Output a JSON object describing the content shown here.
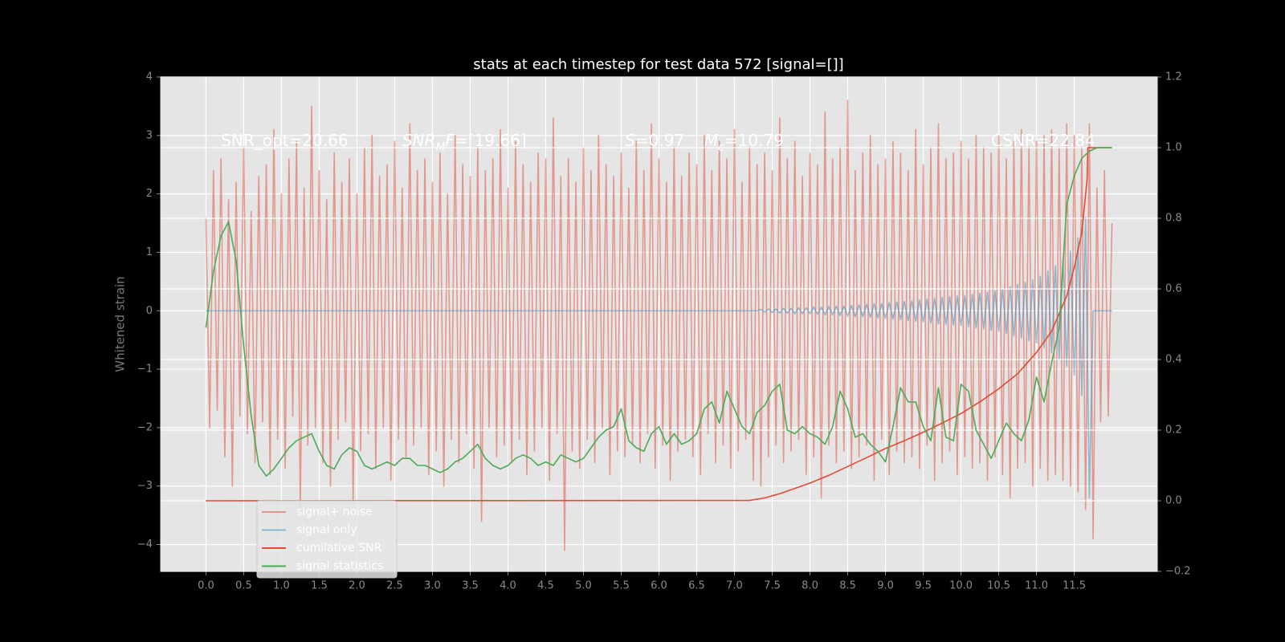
{
  "chart_data": {
    "type": "line",
    "title": "stats at each timestep for test data 572 [signal=[]]",
    "ylabel": "Whitened strain",
    "xlim": [
      -0.6,
      12.6
    ],
    "xticks": [
      {
        "value": 0,
        "label": "0.0"
      },
      0.5,
      {
        "value": 1,
        "label": "1.0"
      },
      1.5,
      {
        "value": 2,
        "label": "2.0"
      },
      2.5,
      {
        "value": 3,
        "label": "3.0"
      },
      3.5,
      {
        "value": 4,
        "label": "4.0"
      },
      4.5,
      {
        "value": 5,
        "label": "5.0"
      },
      5.5,
      {
        "value": 6,
        "label": "6.0"
      },
      6.5,
      {
        "value": 7,
        "label": "7.0"
      },
      7.5,
      {
        "value": 8,
        "label": "8.0"
      },
      8.5,
      {
        "value": 9,
        "label": "9.0"
      },
      9.5,
      {
        "value": 10,
        "label": "10.0"
      },
      10.5,
      {
        "value": 11,
        "label": "11.0"
      },
      11.5
    ],
    "ylim": [
      -4.46,
      4.0
    ],
    "yticks": [
      {
        "value": -4,
        "label": "−4"
      },
      {
        "value": -3,
        "label": "−3"
      },
      {
        "value": -2,
        "label": "−2"
      },
      {
        "value": -1,
        "label": "−1"
      },
      0,
      1,
      2,
      3,
      4
    ],
    "y2lim": [
      -0.2,
      1.2
    ],
    "y2ticks": [
      {
        "value": -0.2,
        "label": "−0.2"
      },
      {
        "value": 0,
        "label": "0.0"
      },
      0.2,
      0.4,
      0.6,
      0.8,
      {
        "value": 1,
        "label": "1.0"
      },
      1.2
    ],
    "grid": true,
    "legend": "lower left",
    "annotations": [
      {
        "parts": [
          {
            "text": "SNR_opt=20.66"
          }
        ]
      },
      {
        "parts": [
          {
            "text": "SNR",
            "style": "italic"
          },
          {
            "text": "M",
            "style": "sub"
          },
          {
            "text": "F",
            "style": "italic"
          },
          {
            "text": "=[19.66]"
          }
        ]
      },
      {
        "parts": [
          {
            "text": "S",
            "style": "italic"
          },
          {
            "text": "=0.97"
          }
        ]
      },
      {
        "parts": [
          {
            "text": "M",
            "style": "italic"
          },
          {
            "text": "c",
            "style": "sub"
          },
          {
            "text": "=10.79"
          }
        ]
      },
      {
        "parts": [
          {
            "text": "CSNR=22.84"
          }
        ]
      }
    ],
    "series": [
      {
        "name": "signal+ noise",
        "color": "#E24A33",
        "opacity": 0.5,
        "axis": "y",
        "x": [
          0,
          0.05,
          0.1,
          0.15,
          0.2,
          0.25,
          0.3,
          0.35,
          0.4,
          0.45,
          0.5,
          0.55,
          0.6,
          0.65,
          0.7,
          0.75,
          0.8,
          0.85,
          0.9,
          0.95,
          1,
          1.05,
          1.1,
          1.15,
          1.2,
          1.25,
          1.3,
          1.35,
          1.4,
          1.45,
          1.5,
          1.55,
          1.6,
          1.65,
          1.7,
          1.75,
          1.8,
          1.85,
          1.9,
          1.95,
          2,
          2.05,
          2.1,
          2.15,
          2.2,
          2.25,
          2.3,
          2.35,
          2.4,
          2.45,
          2.5,
          2.55,
          2.6,
          2.65,
          2.7,
          2.75,
          2.8,
          2.85,
          2.9,
          2.95,
          3,
          3.05,
          3.1,
          3.15,
          3.2,
          3.25,
          3.3,
          3.35,
          3.4,
          3.45,
          3.5,
          3.55,
          3.6,
          3.65,
          3.7,
          3.75,
          3.8,
          3.85,
          3.9,
          3.95,
          4,
          4.05,
          4.1,
          4.15,
          4.2,
          4.25,
          4.3,
          4.35,
          4.4,
          4.45,
          4.5,
          4.55,
          4.6,
          4.65,
          4.7,
          4.75,
          4.8,
          4.85,
          4.9,
          4.95,
          5,
          5.05,
          5.1,
          5.15,
          5.2,
          5.25,
          5.3,
          5.35,
          5.4,
          5.45,
          5.5,
          5.55,
          5.6,
          5.65,
          5.7,
          5.75,
          5.8,
          5.85,
          5.9,
          5.95,
          6,
          6.05,
          6.1,
          6.15,
          6.2,
          6.25,
          6.3,
          6.35,
          6.4,
          6.45,
          6.5,
          6.55,
          6.6,
          6.65,
          6.7,
          6.75,
          6.8,
          6.85,
          6.9,
          6.95,
          7,
          7.05,
          7.1,
          7.15,
          7.2,
          7.25,
          7.3,
          7.35,
          7.4,
          7.45,
          7.5,
          7.55,
          7.6,
          7.65,
          7.7,
          7.75,
          7.8,
          7.85,
          7.9,
          7.95,
          8,
          8.05,
          8.1,
          8.15,
          8.2,
          8.25,
          8.3,
          8.35,
          8.4,
          8.45,
          8.5,
          8.55,
          8.6,
          8.65,
          8.7,
          8.75,
          8.8,
          8.85,
          8.9,
          8.95,
          9,
          9.05,
          9.1,
          9.15,
          9.2,
          9.25,
          9.3,
          9.35,
          9.4,
          9.45,
          9.5,
          9.55,
          9.6,
          9.65,
          9.7,
          9.75,
          9.8,
          9.85,
          9.9,
          9.95,
          10,
          10.05,
          10.1,
          10.15,
          10.2,
          10.25,
          10.3,
          10.35,
          10.4,
          10.45,
          10.5,
          10.55,
          10.6,
          10.65,
          10.7,
          10.75,
          10.8,
          10.85,
          10.9,
          10.95,
          11,
          11.05,
          11.1,
          11.15,
          11.2,
          11.25,
          11.3,
          11.35,
          11.4,
          11.45,
          11.5,
          11.55,
          11.6,
          11.65,
          11.7,
          11.75,
          11.8,
          11.85,
          11.9,
          11.95,
          12
        ],
        "values": [
          1.6,
          -2.0,
          2.4,
          -1.7,
          2.6,
          -2.5,
          1.9,
          -3.0,
          2.2,
          -1.8,
          2.8,
          -2.1,
          1.7,
          -2.6,
          2.3,
          -1.9,
          2.5,
          -2.8,
          3.1,
          -2.2,
          2.0,
          -2.7,
          2.6,
          -1.8,
          2.9,
          -3.4,
          2.1,
          -2.3,
          3.5,
          -2.0,
          2.4,
          -2.6,
          1.9,
          -3.0,
          2.7,
          -2.2,
          2.2,
          -1.9,
          2.6,
          -3.3,
          2.0,
          -2.4,
          2.8,
          -2.1,
          3.0,
          -2.7,
          2.3,
          -2.0,
          2.5,
          -2.9,
          2.9,
          -2.2,
          2.1,
          -2.5,
          3.2,
          -2.3,
          2.4,
          -2.0,
          2.6,
          -2.8,
          2.2,
          -2.4,
          2.7,
          -3.0,
          2.0,
          -2.2,
          3.0,
          -2.6,
          2.5,
          -2.1,
          2.3,
          -2.7,
          2.8,
          -3.6,
          2.4,
          -2.0,
          2.6,
          -2.5,
          3.1,
          -2.3,
          2.1,
          -2.6,
          2.9,
          -2.2,
          2.5,
          -2.8,
          2.2,
          -2.4,
          2.7,
          -2.0,
          2.6,
          -2.9,
          3.3,
          -2.1,
          2.3,
          -4.1,
          2.6,
          -2.4,
          2.2,
          -2.7,
          2.8,
          -2.2,
          2.4,
          -2.6,
          3.0,
          -2.0,
          2.5,
          -2.8,
          2.3,
          -2.4,
          2.7,
          -2.5,
          2.1,
          -2.3,
          2.9,
          -2.6,
          2.4,
          -2.1,
          3.2,
          -2.7,
          2.6,
          -2.3,
          2.2,
          -2.9,
          2.8,
          -2.4,
          2.3,
          -2.2,
          2.7,
          -2.5,
          2.5,
          -2.8,
          3.0,
          -2.1,
          2.4,
          -2.6,
          2.9,
          -2.3,
          2.6,
          -2.7,
          3.1,
          -2.4,
          2.2,
          -2.2,
          2.8,
          -2.9,
          2.5,
          -3.0,
          2.7,
          -2.5,
          2.4,
          -2.3,
          3.3,
          -2.6,
          2.6,
          -2.4,
          2.9,
          -2.2,
          2.3,
          -2.8,
          2.7,
          -2.5,
          2.5,
          -3.2,
          3.4,
          -2.3,
          2.6,
          -2.6,
          2.8,
          -2.4,
          3.6,
          -2.7,
          2.4,
          -2.5,
          2.7,
          -2.3,
          3.0,
          -2.9,
          2.5,
          -2.2,
          2.6,
          -2.8,
          2.9,
          -2.4,
          2.7,
          -2.6,
          2.4,
          -2.5,
          3.1,
          -2.7,
          2.5,
          -2.3,
          2.8,
          -2.9,
          3.2,
          -2.6,
          2.6,
          -2.4,
          2.7,
          -2.8,
          2.9,
          -2.5,
          2.6,
          -2.7,
          3.0,
          -2.6,
          2.8,
          -2.9,
          2.7,
          -2.5,
          3.0,
          -2.8,
          2.6,
          -3.2,
          2.9,
          -2.7,
          3.1,
          -2.6,
          2.8,
          -3.0,
          2.9,
          -2.7,
          3.0,
          -2.9,
          3.1,
          -2.8,
          2.8,
          -2.9,
          3.2,
          -3.0,
          3.0,
          -3.1,
          2.8,
          -3.4,
          3.2,
          -3.9,
          2.1,
          -1.9,
          2.4,
          -1.8,
          1.5
        ]
      },
      {
        "name": "signal only",
        "color": "#348ABD",
        "opacity": 0.5,
        "axis": "y",
        "x": [
          0,
          7.3,
          7.35,
          7.4,
          7.45,
          7.5,
          7.55,
          7.6,
          7.65,
          7.7,
          7.75,
          7.8,
          7.85,
          7.9,
          7.95,
          8,
          8.05,
          8.1,
          8.15,
          8.2,
          8.25,
          8.3,
          8.35,
          8.4,
          8.45,
          8.5,
          8.55,
          8.6,
          8.65,
          8.7,
          8.75,
          8.8,
          8.85,
          8.9,
          8.95,
          9,
          9.05,
          9.1,
          9.15,
          9.2,
          9.25,
          9.3,
          9.35,
          9.4,
          9.45,
          9.5,
          9.55,
          9.6,
          9.65,
          9.7,
          9.75,
          9.8,
          9.85,
          9.9,
          9.95,
          10,
          10.05,
          10.1,
          10.15,
          10.2,
          10.25,
          10.3,
          10.35,
          10.4,
          10.45,
          10.5,
          10.55,
          10.6,
          10.65,
          10.7,
          10.75,
          10.8,
          10.85,
          10.9,
          10.95,
          11,
          11.05,
          11.1,
          11.15,
          11.2,
          11.25,
          11.3,
          11.35,
          11.4,
          11.45,
          11.5,
          11.55,
          11.6,
          11.65,
          11.7,
          11.75,
          12
        ],
        "values": [
          0,
          0,
          0.02,
          -0.02,
          0.03,
          -0.03,
          0.03,
          -0.04,
          0.04,
          -0.04,
          0.04,
          -0.05,
          0.05,
          -0.05,
          0.05,
          -0.05,
          0.06,
          -0.06,
          0.06,
          -0.07,
          0.07,
          -0.07,
          0.08,
          -0.08,
          0.08,
          -0.09,
          0.09,
          -0.1,
          0.1,
          -0.1,
          0.11,
          -0.11,
          0.12,
          -0.12,
          0.12,
          -0.13,
          0.14,
          -0.14,
          0.15,
          -0.15,
          0.16,
          -0.17,
          0.17,
          -0.18,
          0.18,
          -0.19,
          0.2,
          -0.21,
          0.21,
          -0.22,
          0.23,
          -0.23,
          0.24,
          -0.24,
          0.25,
          -0.25,
          0.26,
          -0.27,
          0.28,
          -0.29,
          0.3,
          -0.31,
          0.32,
          -0.33,
          0.34,
          -0.35,
          0.37,
          -0.39,
          0.41,
          -0.43,
          0.45,
          -0.47,
          0.49,
          -0.51,
          0.53,
          -0.55,
          0.59,
          -0.63,
          0.68,
          -0.72,
          0.77,
          -0.82,
          0.88,
          -0.95,
          1.02,
          -1.1,
          1.25,
          -1.45,
          1.6,
          -3.2,
          0,
          0
        ]
      },
      {
        "name": "cumilative SNR",
        "color": "#E24A33",
        "opacity": 1,
        "axis": "y2",
        "x": [
          0,
          7.2,
          7.4,
          7.6,
          7.8,
          8,
          8.25,
          8.5,
          8.75,
          9,
          9.25,
          9.5,
          9.75,
          10,
          10.25,
          10.5,
          10.75,
          11,
          11.2,
          11.4,
          11.5,
          11.6,
          11.67,
          11.68,
          12
        ],
        "values": [
          0,
          0.001,
          0.008,
          0.02,
          0.035,
          0.05,
          0.072,
          0.097,
          0.122,
          0.148,
          0.17,
          0.194,
          0.22,
          0.247,
          0.28,
          0.317,
          0.36,
          0.42,
          0.48,
          0.58,
          0.66,
          0.76,
          0.91,
          1.0,
          1.0
        ]
      },
      {
        "name": "signal statistics",
        "color": "#4DAA57",
        "opacity": 1,
        "axis": "y2",
        "x": [
          0,
          0.1,
          0.2,
          0.3,
          0.4,
          0.5,
          0.6,
          0.7,
          0.8,
          0.9,
          1,
          1.1,
          1.2,
          1.3,
          1.4,
          1.5,
          1.6,
          1.7,
          1.8,
          1.9,
          2,
          2.1,
          2.2,
          2.3,
          2.4,
          2.5,
          2.6,
          2.7,
          2.8,
          2.9,
          3,
          3.1,
          3.2,
          3.3,
          3.4,
          3.5,
          3.6,
          3.7,
          3.8,
          3.9,
          4,
          4.1,
          4.2,
          4.3,
          4.4,
          4.5,
          4.6,
          4.7,
          4.8,
          4.9,
          5,
          5.1,
          5.2,
          5.3,
          5.4,
          5.5,
          5.6,
          5.7,
          5.8,
          5.9,
          6,
          6.1,
          6.2,
          6.3,
          6.4,
          6.5,
          6.6,
          6.7,
          6.8,
          6.9,
          7,
          7.1,
          7.2,
          7.3,
          7.4,
          7.5,
          7.6,
          7.7,
          7.8,
          7.9,
          8,
          8.1,
          8.2,
          8.3,
          8.4,
          8.5,
          8.6,
          8.7,
          8.8,
          8.9,
          9,
          9.1,
          9.2,
          9.3,
          9.4,
          9.5,
          9.6,
          9.7,
          9.8,
          9.9,
          10,
          10.1,
          10.2,
          10.3,
          10.4,
          10.5,
          10.6,
          10.7,
          10.8,
          10.9,
          11,
          11.1,
          11.2,
          11.3,
          11.4,
          11.5,
          11.6,
          11.7,
          11.8,
          11.9,
          12
        ],
        "values": [
          0.49,
          0.65,
          0.75,
          0.79,
          0.68,
          0.44,
          0.24,
          0.1,
          0.07,
          0.09,
          0.12,
          0.15,
          0.17,
          0.18,
          0.19,
          0.14,
          0.1,
          0.09,
          0.13,
          0.15,
          0.14,
          0.1,
          0.09,
          0.1,
          0.11,
          0.1,
          0.12,
          0.12,
          0.1,
          0.1,
          0.09,
          0.08,
          0.09,
          0.11,
          0.12,
          0.14,
          0.16,
          0.12,
          0.1,
          0.09,
          0.1,
          0.12,
          0.13,
          0.12,
          0.1,
          0.11,
          0.1,
          0.13,
          0.12,
          0.11,
          0.12,
          0.15,
          0.18,
          0.2,
          0.21,
          0.26,
          0.17,
          0.15,
          0.14,
          0.19,
          0.21,
          0.16,
          0.19,
          0.16,
          0.17,
          0.19,
          0.26,
          0.28,
          0.22,
          0.31,
          0.26,
          0.21,
          0.19,
          0.25,
          0.27,
          0.31,
          0.33,
          0.2,
          0.19,
          0.21,
          0.19,
          0.18,
          0.16,
          0.21,
          0.31,
          0.26,
          0.18,
          0.19,
          0.16,
          0.14,
          0.11,
          0.21,
          0.32,
          0.28,
          0.28,
          0.21,
          0.17,
          0.32,
          0.18,
          0.17,
          0.33,
          0.31,
          0.2,
          0.16,
          0.12,
          0.17,
          0.22,
          0.19,
          0.17,
          0.23,
          0.35,
          0.28,
          0.39,
          0.49,
          0.84,
          0.92,
          0.97,
          0.99,
          1.0,
          1.0,
          1.0
        ]
      }
    ]
  }
}
